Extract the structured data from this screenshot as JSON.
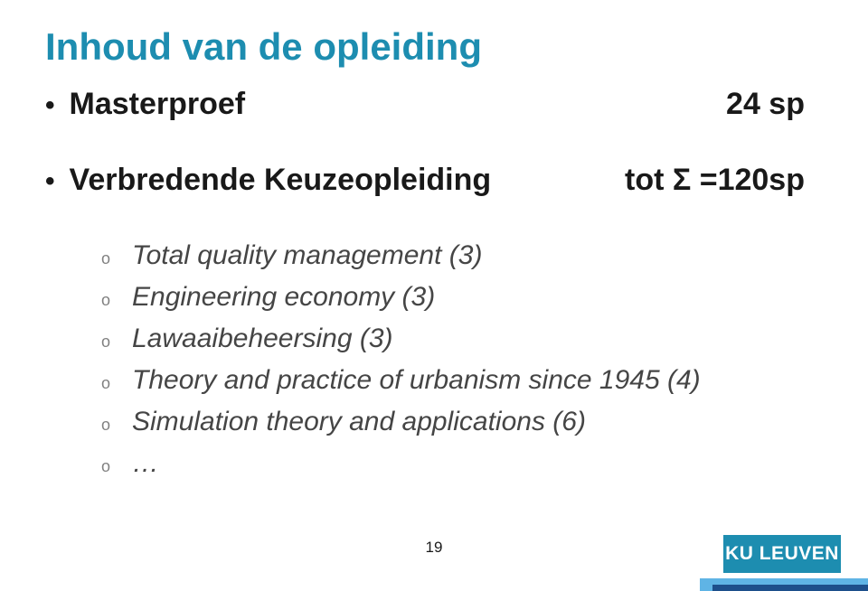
{
  "title": {
    "text": "Inhoud van de opleiding",
    "color": "#1d8db0"
  },
  "row1": {
    "label": "Masterproef",
    "value": "24 sp"
  },
  "row2": {
    "label": "Verbredende Keuzeopleiding",
    "value": "tot Σ =120sp"
  },
  "subitems": [
    "Total quality management (3)",
    "Engineering economy (3)",
    "Lawaaibeheersing (3)",
    "Theory and practice of urbanism since 1945 (4)",
    "Simulation theory and applications (6)",
    "…"
  ],
  "sub_color": "#454545",
  "o_color": "#808080",
  "page_number": "19",
  "logo": "KU LEUVEN",
  "footer_colors": {
    "light": "#5fb4e5",
    "dark": "#1d4f8b",
    "logo_bg": "#1d8db0"
  }
}
